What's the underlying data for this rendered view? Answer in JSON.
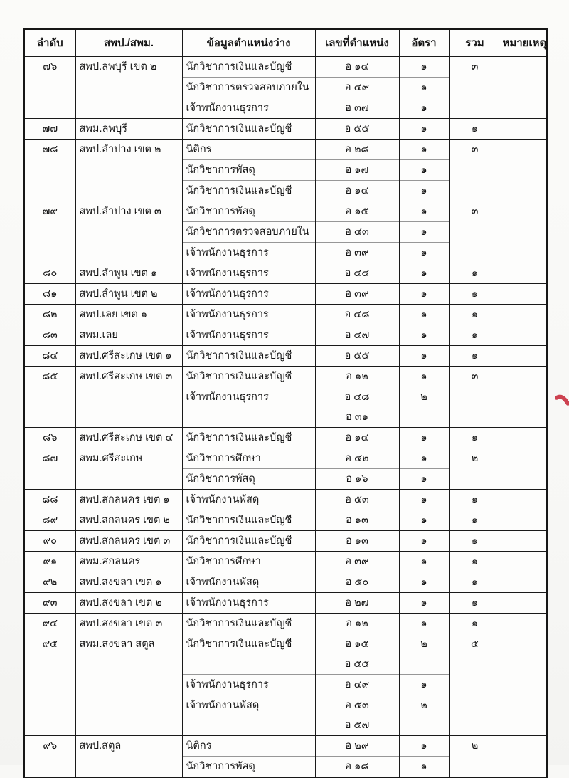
{
  "table": {
    "headers": [
      "ลำดับ",
      "สพป./สพม.",
      "ข้อมูลตำแหน่งว่าง",
      "เลขที่ตำแหน่ง",
      "อัตรา",
      "รวม",
      "หมายเหตุ"
    ],
    "groups": [
      {
        "no": "๗๖",
        "office": "สพป.ลพบุรี เขต ๒",
        "total": "๓",
        "note": "",
        "items": [
          {
            "title": "นักวิชาการเงินและบัญชี",
            "positions": [
              "อ ๑๔"
            ],
            "rate": "๑"
          },
          {
            "title": "นักวิชาการตรวจสอบภายใน",
            "positions": [
              "อ ๔๙"
            ],
            "rate": "๑"
          },
          {
            "title": "เจ้าพนักงานธุรการ",
            "positions": [
              "อ ๓๗"
            ],
            "rate": "๑"
          }
        ]
      },
      {
        "no": "๗๗",
        "office": "สพม.ลพบุรี",
        "total": "๑",
        "note": "",
        "items": [
          {
            "title": "นักวิชาการเงินและบัญชี",
            "positions": [
              "อ ๕๕"
            ],
            "rate": "๑"
          }
        ]
      },
      {
        "no": "๗๘",
        "office": "สพป.ลำปาง เขต ๒",
        "total": "๓",
        "note": "",
        "items": [
          {
            "title": "นิติกร",
            "positions": [
              "อ ๒๘"
            ],
            "rate": "๑"
          },
          {
            "title": "นักวิชาการพัสดุ",
            "positions": [
              "อ ๑๗"
            ],
            "rate": "๑"
          },
          {
            "title": "นักวิชาการเงินและบัญชี",
            "positions": [
              "อ ๑๔"
            ],
            "rate": "๑"
          }
        ]
      },
      {
        "no": "๗๙",
        "office": "สพป.ลำปาง เขต ๓",
        "total": "๓",
        "note": "",
        "items": [
          {
            "title": "นักวิชาการพัสดุ",
            "positions": [
              "อ ๑๕"
            ],
            "rate": "๑"
          },
          {
            "title": "นักวิชาการตรวจสอบภายใน",
            "positions": [
              "อ ๔๓"
            ],
            "rate": "๑"
          },
          {
            "title": "เจ้าพนักงานธุรการ",
            "positions": [
              "อ ๓๙"
            ],
            "rate": "๑"
          }
        ]
      },
      {
        "no": "๘๐",
        "office": "สพป.ลำพูน เขต ๑",
        "total": "๑",
        "note": "",
        "items": [
          {
            "title": "เจ้าพนักงานธุรการ",
            "positions": [
              "อ ๔๔"
            ],
            "rate": "๑"
          }
        ]
      },
      {
        "no": "๘๑",
        "office": "สพป.ลำพูน เขต ๒",
        "total": "๑",
        "note": "",
        "items": [
          {
            "title": "เจ้าพนักงานธุรการ",
            "positions": [
              "อ ๓๙"
            ],
            "rate": "๑"
          }
        ]
      },
      {
        "no": "๘๒",
        "office": "สพป.เลย เขต ๑",
        "total": "๑",
        "note": "",
        "items": [
          {
            "title": "เจ้าพนักงานธุรการ",
            "positions": [
              "อ ๔๘"
            ],
            "rate": "๑"
          }
        ]
      },
      {
        "no": "๘๓",
        "office": "สพม.เลย",
        "total": "๑",
        "note": "",
        "items": [
          {
            "title": "เจ้าพนักงานธุรการ",
            "positions": [
              "อ ๔๗"
            ],
            "rate": "๑"
          }
        ]
      },
      {
        "no": "๘๔",
        "office": "สพป.ศรีสะเกษ เขต ๑",
        "total": "๑",
        "note": "",
        "items": [
          {
            "title": "นักวิชาการเงินและบัญชี",
            "positions": [
              "อ ๕๕"
            ],
            "rate": "๑"
          }
        ]
      },
      {
        "no": "๘๕",
        "office": "สพป.ศรีสะเกษ เขต ๓",
        "total": "๓",
        "note": "",
        "items": [
          {
            "title": "นักวิชาการเงินและบัญชี",
            "positions": [
              "อ ๑๒"
            ],
            "rate": "๑"
          },
          {
            "title": "เจ้าพนักงานธุรการ",
            "positions": [
              "อ ๔๘",
              "อ ๓๑"
            ],
            "rate": "๒"
          }
        ]
      },
      {
        "no": "๘๖",
        "office": "สพป.ศรีสะเกษ เขต ๔",
        "total": "๑",
        "note": "",
        "items": [
          {
            "title": "นักวิชาการเงินและบัญชี",
            "positions": [
              "อ ๑๔"
            ],
            "rate": "๑"
          }
        ]
      },
      {
        "no": "๘๗",
        "office": "สพม.ศรีสะเกษ",
        "total": "๒",
        "note": "",
        "items": [
          {
            "title": "นักวิชาการศึกษา",
            "positions": [
              "อ ๔๒"
            ],
            "rate": "๑"
          },
          {
            "title": "นักวิชาการพัสดุ",
            "positions": [
              "อ ๑๖"
            ],
            "rate": "๑"
          }
        ]
      },
      {
        "no": "๘๘",
        "office": "สพป.สกลนคร เขต ๑",
        "total": "๑",
        "note": "",
        "items": [
          {
            "title": "เจ้าพนักงานพัสดุ",
            "positions": [
              "อ ๕๓"
            ],
            "rate": "๑"
          }
        ]
      },
      {
        "no": "๘๙",
        "office": "สพป.สกลนคร เขต ๒",
        "total": "๑",
        "note": "",
        "items": [
          {
            "title": "นักวิชาการเงินและบัญชี",
            "positions": [
              "อ ๑๓"
            ],
            "rate": "๑"
          }
        ]
      },
      {
        "no": "๙๐",
        "office": "สพป.สกลนคร เขต ๓",
        "total": "๑",
        "note": "",
        "items": [
          {
            "title": "นักวิชาการเงินและบัญชี",
            "positions": [
              "อ ๑๓"
            ],
            "rate": "๑"
          }
        ]
      },
      {
        "no": "๙๑",
        "office": "สพม.สกลนคร",
        "total": "๑",
        "note": "",
        "items": [
          {
            "title": "นักวิชาการศึกษา",
            "positions": [
              "อ ๓๙"
            ],
            "rate": "๑"
          }
        ]
      },
      {
        "no": "๙๒",
        "office": "สพป.สงขลา เขต ๑",
        "total": "๑",
        "note": "",
        "items": [
          {
            "title": "เจ้าพนักงานพัสดุ",
            "positions": [
              "อ ๕๐"
            ],
            "rate": "๑"
          }
        ]
      },
      {
        "no": "๙๓",
        "office": "สพป.สงขลา เขต ๒",
        "total": "๑",
        "note": "",
        "items": [
          {
            "title": "เจ้าพนักงานธุรการ",
            "positions": [
              "อ ๒๗"
            ],
            "rate": "๑"
          }
        ]
      },
      {
        "no": "๙๔",
        "office": "สพป.สงขลา เขต ๓",
        "total": "๑",
        "note": "",
        "items": [
          {
            "title": "นักวิชาการเงินและบัญชี",
            "positions": [
              "อ ๑๒"
            ],
            "rate": "๑"
          }
        ]
      },
      {
        "no": "๙๕",
        "office": "สพม.สงขลา สตูล",
        "total": "๕",
        "note": "",
        "items": [
          {
            "title": "นักวิชาการเงินและบัญชี",
            "positions": [
              "อ ๑๕",
              "อ ๕๕"
            ],
            "rate": "๒"
          },
          {
            "title": "เจ้าพนักงานธุรการ",
            "positions": [
              "อ ๔๙"
            ],
            "rate": "๑"
          },
          {
            "title": "เจ้าพนักงานพัสดุ",
            "positions": [
              "อ ๕๓",
              "อ ๕๗"
            ],
            "rate": "๒"
          }
        ]
      },
      {
        "no": "๙๖",
        "office": "สพป.สตูล",
        "total": "๒",
        "note": "",
        "items": [
          {
            "title": "นิติกร",
            "positions": [
              "อ ๒๙"
            ],
            "rate": "๑"
          },
          {
            "title": "นักวิชาการพัสดุ",
            "positions": [
              "อ ๑๘"
            ],
            "rate": "๑"
          }
        ]
      }
    ]
  },
  "annotation": {
    "red_mark_color": "#cd4250"
  }
}
